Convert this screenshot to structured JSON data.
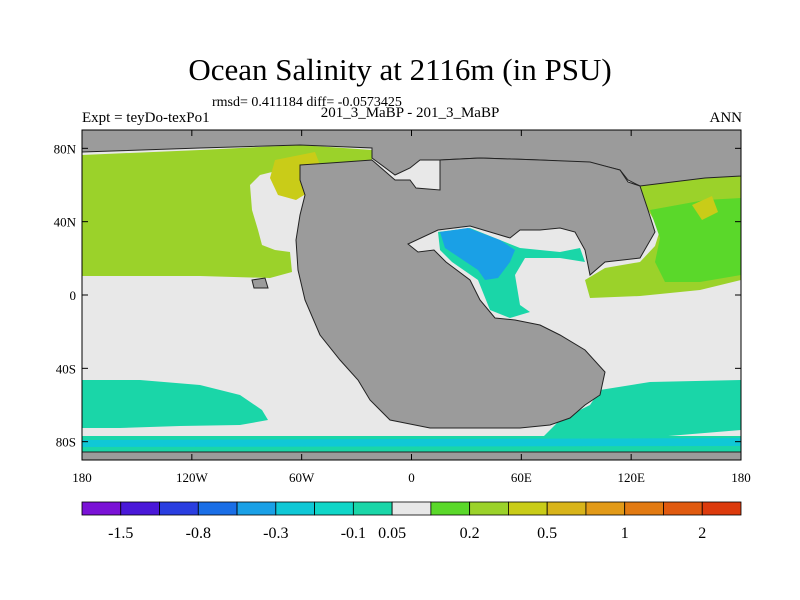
{
  "title": "Ocean Salinity at 2116m (in PSU)",
  "stats": "rmsd= 0.411184 diff= -0.0573425",
  "left_label": "Expt = teyDo-texPo1",
  "center_label": "201_3_MaBP - 201_3_MaBP",
  "right_label": "ANN",
  "colors": {
    "land": "#9b9b9b",
    "near_zero": "#e8e8e8",
    "c010": "#1ad6a8",
    "c030": "#10c8d6",
    "c080": "#1aa0e6",
    "c020p": "#5ad82a",
    "c005p": "#9bd22a",
    "c050p": "#c9cc18",
    "purple": "#7a12d6"
  },
  "chart_data": {
    "type": "heatmap",
    "x_axis": {
      "range": [
        -180,
        180
      ],
      "ticks": [
        {
          "value": -180,
          "label": "180"
        },
        {
          "value": -120,
          "label": "120W"
        },
        {
          "value": -60,
          "label": "60W"
        },
        {
          "value": 0,
          "label": "0"
        },
        {
          "value": 60,
          "label": "60E"
        },
        {
          "value": 120,
          "label": "120E"
        },
        {
          "value": 180,
          "label": "180"
        }
      ]
    },
    "y_axis": {
      "range": [
        -90,
        90
      ],
      "ticks": [
        {
          "value": 80,
          "label": "80N"
        },
        {
          "value": 40,
          "label": "40N"
        },
        {
          "value": 0,
          "label": "0"
        },
        {
          "value": -40,
          "label": "40S"
        },
        {
          "value": -80,
          "label": "80S"
        }
      ]
    },
    "colorbar": {
      "colors": [
        "#7a12d6",
        "#4a18d8",
        "#2a3ee0",
        "#1a6ee6",
        "#1aa0e6",
        "#10c8d6",
        "#10d6c8",
        "#1ad6a8",
        "#e8e8e8",
        "#5ad82a",
        "#9bd22a",
        "#c9cc18",
        "#d8b41a",
        "#e29a18",
        "#e27a12",
        "#e05a10",
        "#dc3a0c"
      ],
      "labels": [
        {
          "after": 1,
          "text": "-1.5"
        },
        {
          "after": 3,
          "text": "-0.8"
        },
        {
          "after": 5,
          "text": "-0.3"
        },
        {
          "after": 7,
          "text": "-0.1"
        },
        {
          "after": 8,
          "text": "0.05"
        },
        {
          "after": 10,
          "text": "0.2"
        },
        {
          "after": 12,
          "text": "0.5"
        },
        {
          "after": 14,
          "text": "1"
        },
        {
          "after": 16,
          "text": "2"
        }
      ]
    }
  }
}
